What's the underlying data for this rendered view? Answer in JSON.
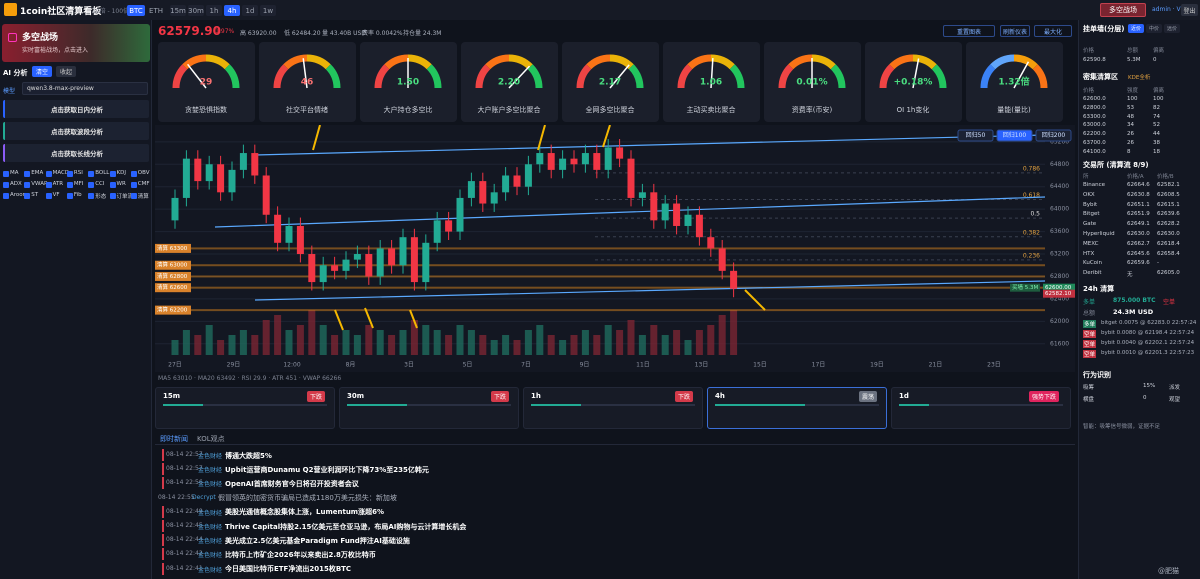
{
  "topbar": {
    "logo": "1coin社区清算看板",
    "leverage": "10倍 - 100倍",
    "symbols": [
      "BTC",
      "ETH"
    ],
    "intervals": [
      "15m",
      "30m",
      "1h",
      "4h",
      "1d",
      "1w"
    ],
    "active_symbol": 0,
    "active_interval": 3,
    "battle": "多空战场",
    "user": "admin · VIP",
    "logout": "登出"
  },
  "sidebar": {
    "banner_title": "多空战场",
    "banner_sub": "实时富裕战场，点击进入",
    "ai_title": "AI 分析",
    "clear": "清空",
    "collapse": "收起",
    "model_label": "模型",
    "model": "qwen3.8-max-preview",
    "actions": [
      "点击获取日内分析",
      "点击获取波段分析",
      "点击获取长线分析"
    ],
    "indicators": [
      "MA",
      "EMA",
      "MACD",
      "RSI",
      "BOLL",
      "KDJ",
      "OBV",
      "ADX",
      "VWAP",
      "ATR",
      "MFI",
      "CCI",
      "WR",
      "CMF",
      "Aroon",
      "ST",
      "VF",
      "Fib",
      "形态",
      "订单流",
      "清算"
    ]
  },
  "ticker": {
    "price": "62579.90",
    "change": "-1.97%",
    "high": "高 63920.00",
    "low": "低 62484.20",
    "volume": "量 43.40B USD",
    "fee": "费率 0.0042%",
    "oi": "持仓量 24.3M",
    "buttons": [
      "重置图表",
      "刷新仪表",
      "最大化"
    ]
  },
  "gauges": [
    {
      "value": "29",
      "label": "贪婪恐惧指数"
    },
    {
      "value": "46",
      "label": "社交平台情绪"
    },
    {
      "value": "1.50",
      "label": "大户持仓多空比"
    },
    {
      "value": "2.20",
      "label": "大户账户多空比聚合"
    },
    {
      "value": "2.17",
      "label": "全网多空比聚合"
    },
    {
      "value": "1.06",
      "label": "主动买卖比聚合"
    },
    {
      "value": "0.01%",
      "label": "资费率(币安)"
    },
    {
      "value": "+0.18%",
      "label": "OI 1h变化"
    },
    {
      "value": "1.32倍",
      "label": "量能(量比)"
    }
  ],
  "chart": {
    "ylim": [
      61400,
      65500
    ],
    "yticks": [
      61600,
      62000,
      62400,
      62800,
      63200,
      63600,
      64000,
      64400,
      64800,
      65200
    ],
    "x_labels": [
      "27日",
      "29日",
      "12:00",
      "8月",
      "3日",
      "5日",
      "7日",
      "9日",
      "11日",
      "13日",
      "15日",
      "17日",
      "19日",
      "21日",
      "23日"
    ],
    "ohlc": [
      [
        63800,
        64350,
        63650,
        64200
      ],
      [
        64200,
        65050,
        64050,
        64900
      ],
      [
        64900,
        65050,
        64350,
        64500
      ],
      [
        64500,
        64950,
        64350,
        64800
      ],
      [
        64800,
        64950,
        64150,
        64300
      ],
      [
        64300,
        64850,
        64150,
        64700
      ],
      [
        64700,
        65150,
        64550,
        65000
      ],
      [
        65000,
        65150,
        64450,
        64600
      ],
      [
        64600,
        64750,
        63750,
        63900
      ],
      [
        63900,
        64050,
        63250,
        63400
      ],
      [
        63400,
        63850,
        63250,
        63700
      ],
      [
        63700,
        63850,
        63050,
        63200
      ],
      [
        63200,
        63350,
        62550,
        62700
      ],
      [
        62700,
        63150,
        62550,
        63000
      ],
      [
        63000,
        63150,
        62750,
        62900
      ],
      [
        62900,
        63250,
        62750,
        63100
      ],
      [
        63100,
        63350,
        62950,
        63200
      ],
      [
        63200,
        63350,
        62650,
        62800
      ],
      [
        62800,
        63450,
        62650,
        63300
      ],
      [
        63300,
        63450,
        62850,
        63000
      ],
      [
        63000,
        63650,
        62850,
        63500
      ],
      [
        63500,
        63650,
        62550,
        62700
      ],
      [
        62700,
        63550,
        62550,
        63400
      ],
      [
        63400,
        63950,
        63250,
        63800
      ],
      [
        63800,
        63950,
        63450,
        63600
      ],
      [
        63600,
        64350,
        63450,
        64200
      ],
      [
        64200,
        64650,
        64050,
        64500
      ],
      [
        64500,
        64650,
        63950,
        64100
      ],
      [
        64100,
        64450,
        63950,
        64300
      ],
      [
        64300,
        64750,
        64150,
        64600
      ],
      [
        64600,
        64750,
        64250,
        64400
      ],
      [
        64400,
        64950,
        64250,
        64800
      ],
      [
        64800,
        65150,
        64650,
        65000
      ],
      [
        65000,
        65150,
        64550,
        64700
      ],
      [
        64700,
        65050,
        64550,
        64900
      ],
      [
        64900,
        65050,
        64650,
        64800
      ],
      [
        64800,
        65150,
        64650,
        65000
      ],
      [
        65000,
        65150,
        64550,
        64700
      ],
      [
        64700,
        65250,
        64550,
        65100
      ],
      [
        65100,
        65250,
        64750,
        64900
      ],
      [
        64900,
        65050,
        64050,
        64200
      ],
      [
        64200,
        64450,
        64050,
        64300
      ],
      [
        64300,
        64450,
        63650,
        63800
      ],
      [
        63800,
        64250,
        63650,
        64100
      ],
      [
        64100,
        64250,
        63550,
        63700
      ],
      [
        63700,
        64050,
        63550,
        63900
      ],
      [
        63900,
        64050,
        63350,
        63500
      ],
      [
        63500,
        63650,
        63150,
        63300
      ],
      [
        63300,
        63450,
        62750,
        62900
      ],
      [
        62900,
        63050,
        62430,
        62580
      ]
    ],
    "volumes": [
      3,
      5,
      4,
      6,
      3,
      4,
      5,
      4,
      7,
      8,
      5,
      6,
      9,
      6,
      4,
      5,
      4,
      6,
      5,
      4,
      5,
      7,
      6,
      5,
      4,
      6,
      5,
      4,
      3,
      4,
      3,
      5,
      6,
      4,
      3,
      4,
      5,
      4,
      6,
      5,
      7,
      4,
      6,
      4,
      5,
      3,
      5,
      6,
      8,
      9
    ],
    "fib": [
      0.786,
      0.618,
      0.5,
      0.382,
      0.236
    ],
    "liquidations": [
      {
        "value": 63300,
        "label": "清算 63300"
      },
      {
        "value": 63000,
        "label": "清算 63000"
      },
      {
        "value": 62800,
        "label": "清算 62800"
      },
      {
        "value": 62600,
        "label": "清算 62600"
      },
      {
        "value": 62200,
        "label": "清算 62200"
      }
    ],
    "price_tags": [
      {
        "value": 62600,
        "label": "62600.00"
      },
      {
        "value": 62582.1,
        "label": "62582.10"
      }
    ],
    "buy_wall": "买墙 5.3M",
    "regression": [
      "回归50",
      "回归100",
      "回归200"
    ],
    "stats": "MA5 63010 · MA20 63492 · RSI 29.9 · ATR 451 · VWAP 66266"
  },
  "timeframes": [
    {
      "name": "15m",
      "badge": "下跌",
      "badge_color": "#d43a4a"
    },
    {
      "name": "30m",
      "badge": "下跌",
      "badge_color": "#d43a4a"
    },
    {
      "name": "1h",
      "badge": "下跌",
      "badge_color": "#d43a4a"
    },
    {
      "name": "4h",
      "badge": "震荡",
      "badge_color": "#6b7280",
      "highlight": true
    },
    {
      "name": "1d",
      "badge": "强势下跌",
      "badge_color": "#e0245e"
    }
  ],
  "news": {
    "tabs": [
      "即时新闻",
      "KOL观点"
    ],
    "items": [
      {
        "time": "08-14 22:57",
        "source": "金色财经",
        "title": "博通大跌超5%",
        "marked": true
      },
      {
        "time": "08-14 22:57",
        "source": "金色财经",
        "title": "Upbit运营商Dunamu Q2营业利润环比下降73%至235亿韩元",
        "marked": true
      },
      {
        "time": "08-14 22:56",
        "source": "金色财经",
        "title": "OpenAI首席财务官今日将召开投资者会议",
        "marked": true
      },
      {
        "time": "08-14 22:55",
        "source": "Decrypt",
        "title": "假冒领英的加密货币骗局已造成1180万美元损失：新加坡",
        "marked": false
      },
      {
        "time": "08-14 22:49",
        "source": "金色财经",
        "title": "美股光通信概念股集体上涨，Lumentum涨超6%",
        "marked": true
      },
      {
        "time": "08-14 22:45",
        "source": "金色财经",
        "title": "Thrive Capital持股2.15亿美元至仓亚马逊，布局AI购物与云计算增长机会",
        "marked": true
      },
      {
        "time": "08-14 22:44",
        "source": "金色财经",
        "title": "美光成立2.5亿美元基金Paradigm Fund押注AI基础设施",
        "marked": true
      },
      {
        "time": "08-14 22:42",
        "source": "金色财经",
        "title": "比特币上市矿企2026年以来卖出2.8万枚比特币",
        "marked": true
      },
      {
        "time": "08-14 22:41",
        "source": "金色财经",
        "title": "今日美国比特币ETF净流出2015枚BTC",
        "marked": true
      }
    ]
  },
  "right": {
    "walls": {
      "title": "挂单墙(分层)",
      "tabs": [
        "近价",
        "中价",
        "远价"
      ],
      "header": [
        "价格",
        "总额",
        "偏离"
      ],
      "rows": [
        [
          "62590.8",
          "5.3M",
          "0"
        ]
      ]
    },
    "clusters": {
      "title": "密集清算区",
      "tag": "KDE全析",
      "header": [
        "价格",
        "强度",
        "偏离"
      ],
      "rows": [
        [
          "62600.0",
          "100",
          "100"
        ],
        [
          "62800.0",
          "53",
          "82"
        ],
        [
          "63300.0",
          "48",
          "74"
        ],
        [
          "63000.0",
          "34",
          "52"
        ],
        [
          "62200.0",
          "26",
          "44"
        ],
        [
          "63700.0",
          "26",
          "38"
        ],
        [
          "64100.0",
          "8",
          "18"
        ]
      ]
    },
    "exchanges": {
      "title": "交易所 (清算流 8/9)",
      "header": [
        "所",
        "价格/A",
        "价格/B"
      ],
      "rows": [
        [
          "Binance",
          "62664.6",
          "62582.1"
        ],
        [
          "OKX",
          "62630.8",
          "62608.5"
        ],
        [
          "Bybit",
          "62651.1",
          "62615.1"
        ],
        [
          "Bitget",
          "62651.9",
          "62639.6"
        ],
        [
          "Gate",
          "62649.1",
          "62628.2"
        ],
        [
          "Hyperliquid",
          "62630.0",
          "62630.0"
        ],
        [
          "MEXC",
          "62662.7",
          "62618.4"
        ],
        [
          "HTX",
          "62645.6",
          "62658.4"
        ],
        [
          "KuCoin",
          "62659.6",
          "-"
        ],
        [
          "Deribit",
          "无",
          "62605.0"
        ]
      ]
    },
    "liq24": {
      "title": "24h 清算",
      "long_label": "多单",
      "long": "875.000 BTC",
      "short_label": "空单",
      "total_label": "总额",
      "total": "24.3M USD",
      "rows": [
        [
          "多单",
          "bitget 0.0075 @ 62283.0 22:57:24"
        ],
        [
          "空单",
          "bybit 0.0080 @ 62198.4 22:57:24"
        ],
        [
          "空单",
          "bybit 0.0040 @ 62202.1 22:57:24"
        ],
        [
          "空单",
          "bybit 0.0010 @ 62201.3 22:57:23"
        ]
      ]
    },
    "behavior": {
      "title": "行为识别",
      "rows": [
        [
          "吸筹",
          "15%",
          "派发"
        ],
        [
          "横盘",
          "0",
          "观望"
        ]
      ],
      "note": "智能：吸筹信号微弱，证据不足"
    }
  },
  "watermark": "@肥猫"
}
